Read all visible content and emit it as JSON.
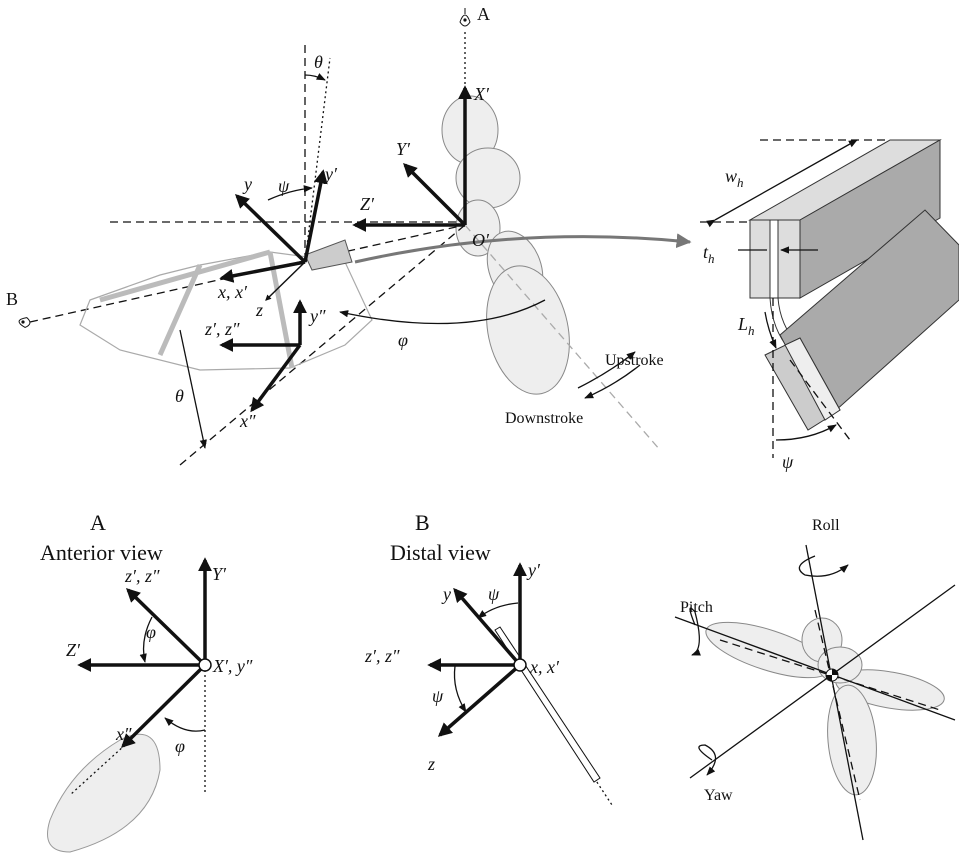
{
  "main_view": {
    "view_a_label": "A",
    "view_b_label": "B",
    "X_prime": "X′",
    "Y_prime": "Y′",
    "Z_prime": "Z′",
    "origin": "O′",
    "theta_top": "θ",
    "psi_top": "ψ",
    "y": "y",
    "y_prime": "y′",
    "x_x_prime": "x, x′",
    "z": "z",
    "z_prime_z_dprime": "z′, z″",
    "y_dprime": "y″",
    "x_dprime": "x″",
    "phi": "φ",
    "theta": "θ",
    "upstroke": "Upstroke",
    "downstroke": "Downstroke"
  },
  "hinge_detail": {
    "width": {
      "symbol": "w",
      "subscript": "h"
    },
    "thickness": {
      "symbol": "t",
      "subscript": "h"
    },
    "length": {
      "symbol": "L",
      "subscript": "h"
    },
    "psi": "ψ"
  },
  "anterior_view": {
    "letter": "A",
    "title": "Anterior view",
    "Y_prime": "Y′",
    "z_prime_z_dprime": "z′, z″",
    "phi_upper": "φ",
    "Z_prime": "Z′",
    "X_prime_y_dprime": "X′, y″",
    "x_dprime": "x″",
    "phi_lower": "φ"
  },
  "distal_view": {
    "letter": "B",
    "title": "Distal view",
    "y_prime": "y′",
    "y": "y",
    "psi_upper": "ψ",
    "z_prime_z_dprime": "z′, z″",
    "x_x_prime": "x, x′",
    "psi_lower": "ψ",
    "z": "z"
  },
  "body_axes": {
    "roll": "Roll",
    "pitch": "Pitch",
    "yaw": "Yaw"
  }
}
